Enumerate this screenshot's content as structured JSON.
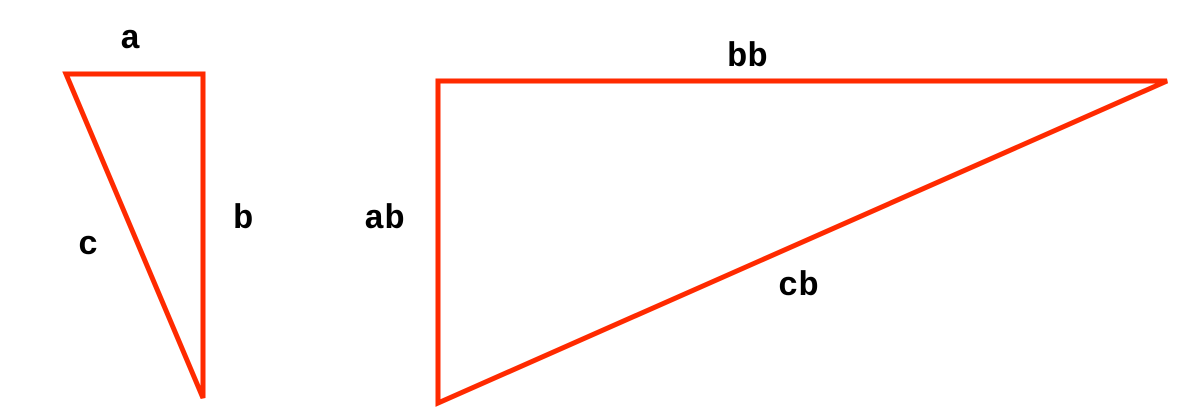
{
  "colors": {
    "stroke": "#ff2a00",
    "text": "#000000",
    "background": "#ffffff"
  },
  "small_triangle": {
    "side_labels": {
      "top": "a",
      "right": "b",
      "hypotenuse": "c"
    }
  },
  "large_triangle": {
    "side_labels": {
      "top": "bb",
      "left": "ab",
      "hypotenuse": "cb"
    }
  }
}
